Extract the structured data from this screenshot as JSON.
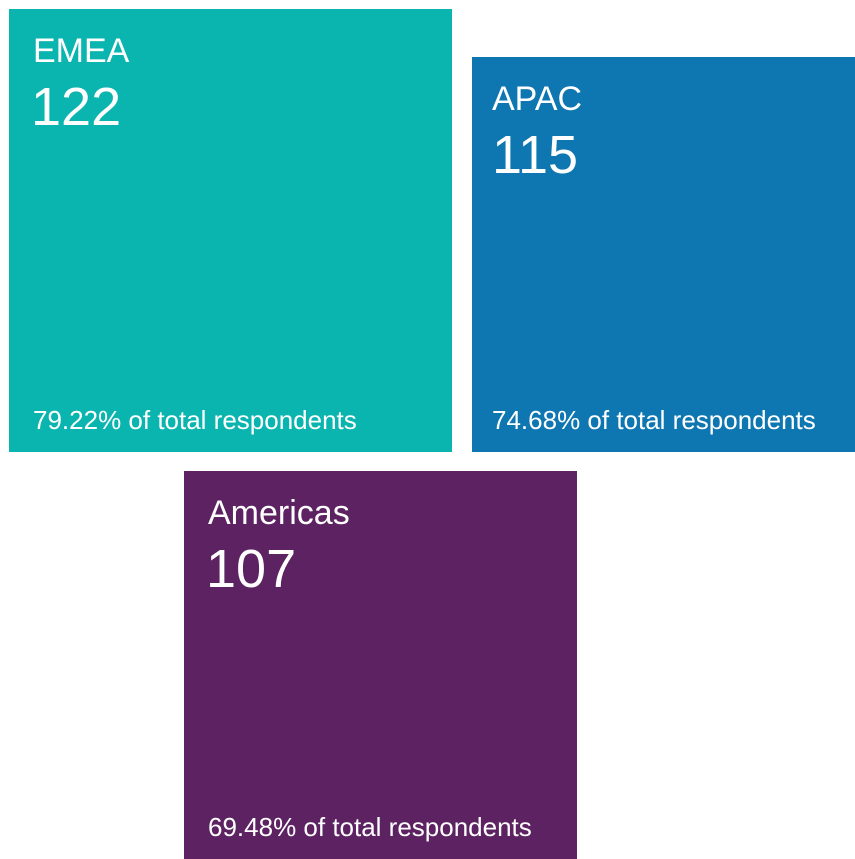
{
  "tiles": [
    {
      "region": "EMEA",
      "count": 122,
      "share": "79.22% of total respondents",
      "color": "#0ab5b0"
    },
    {
      "region": "APAC",
      "count": 115,
      "share": "74.68% of total respondents",
      "color": "#0e76b0"
    },
    {
      "region": "Americas",
      "count": 107,
      "share": "69.48% of total respondents",
      "color": "#5c2262"
    }
  ]
}
